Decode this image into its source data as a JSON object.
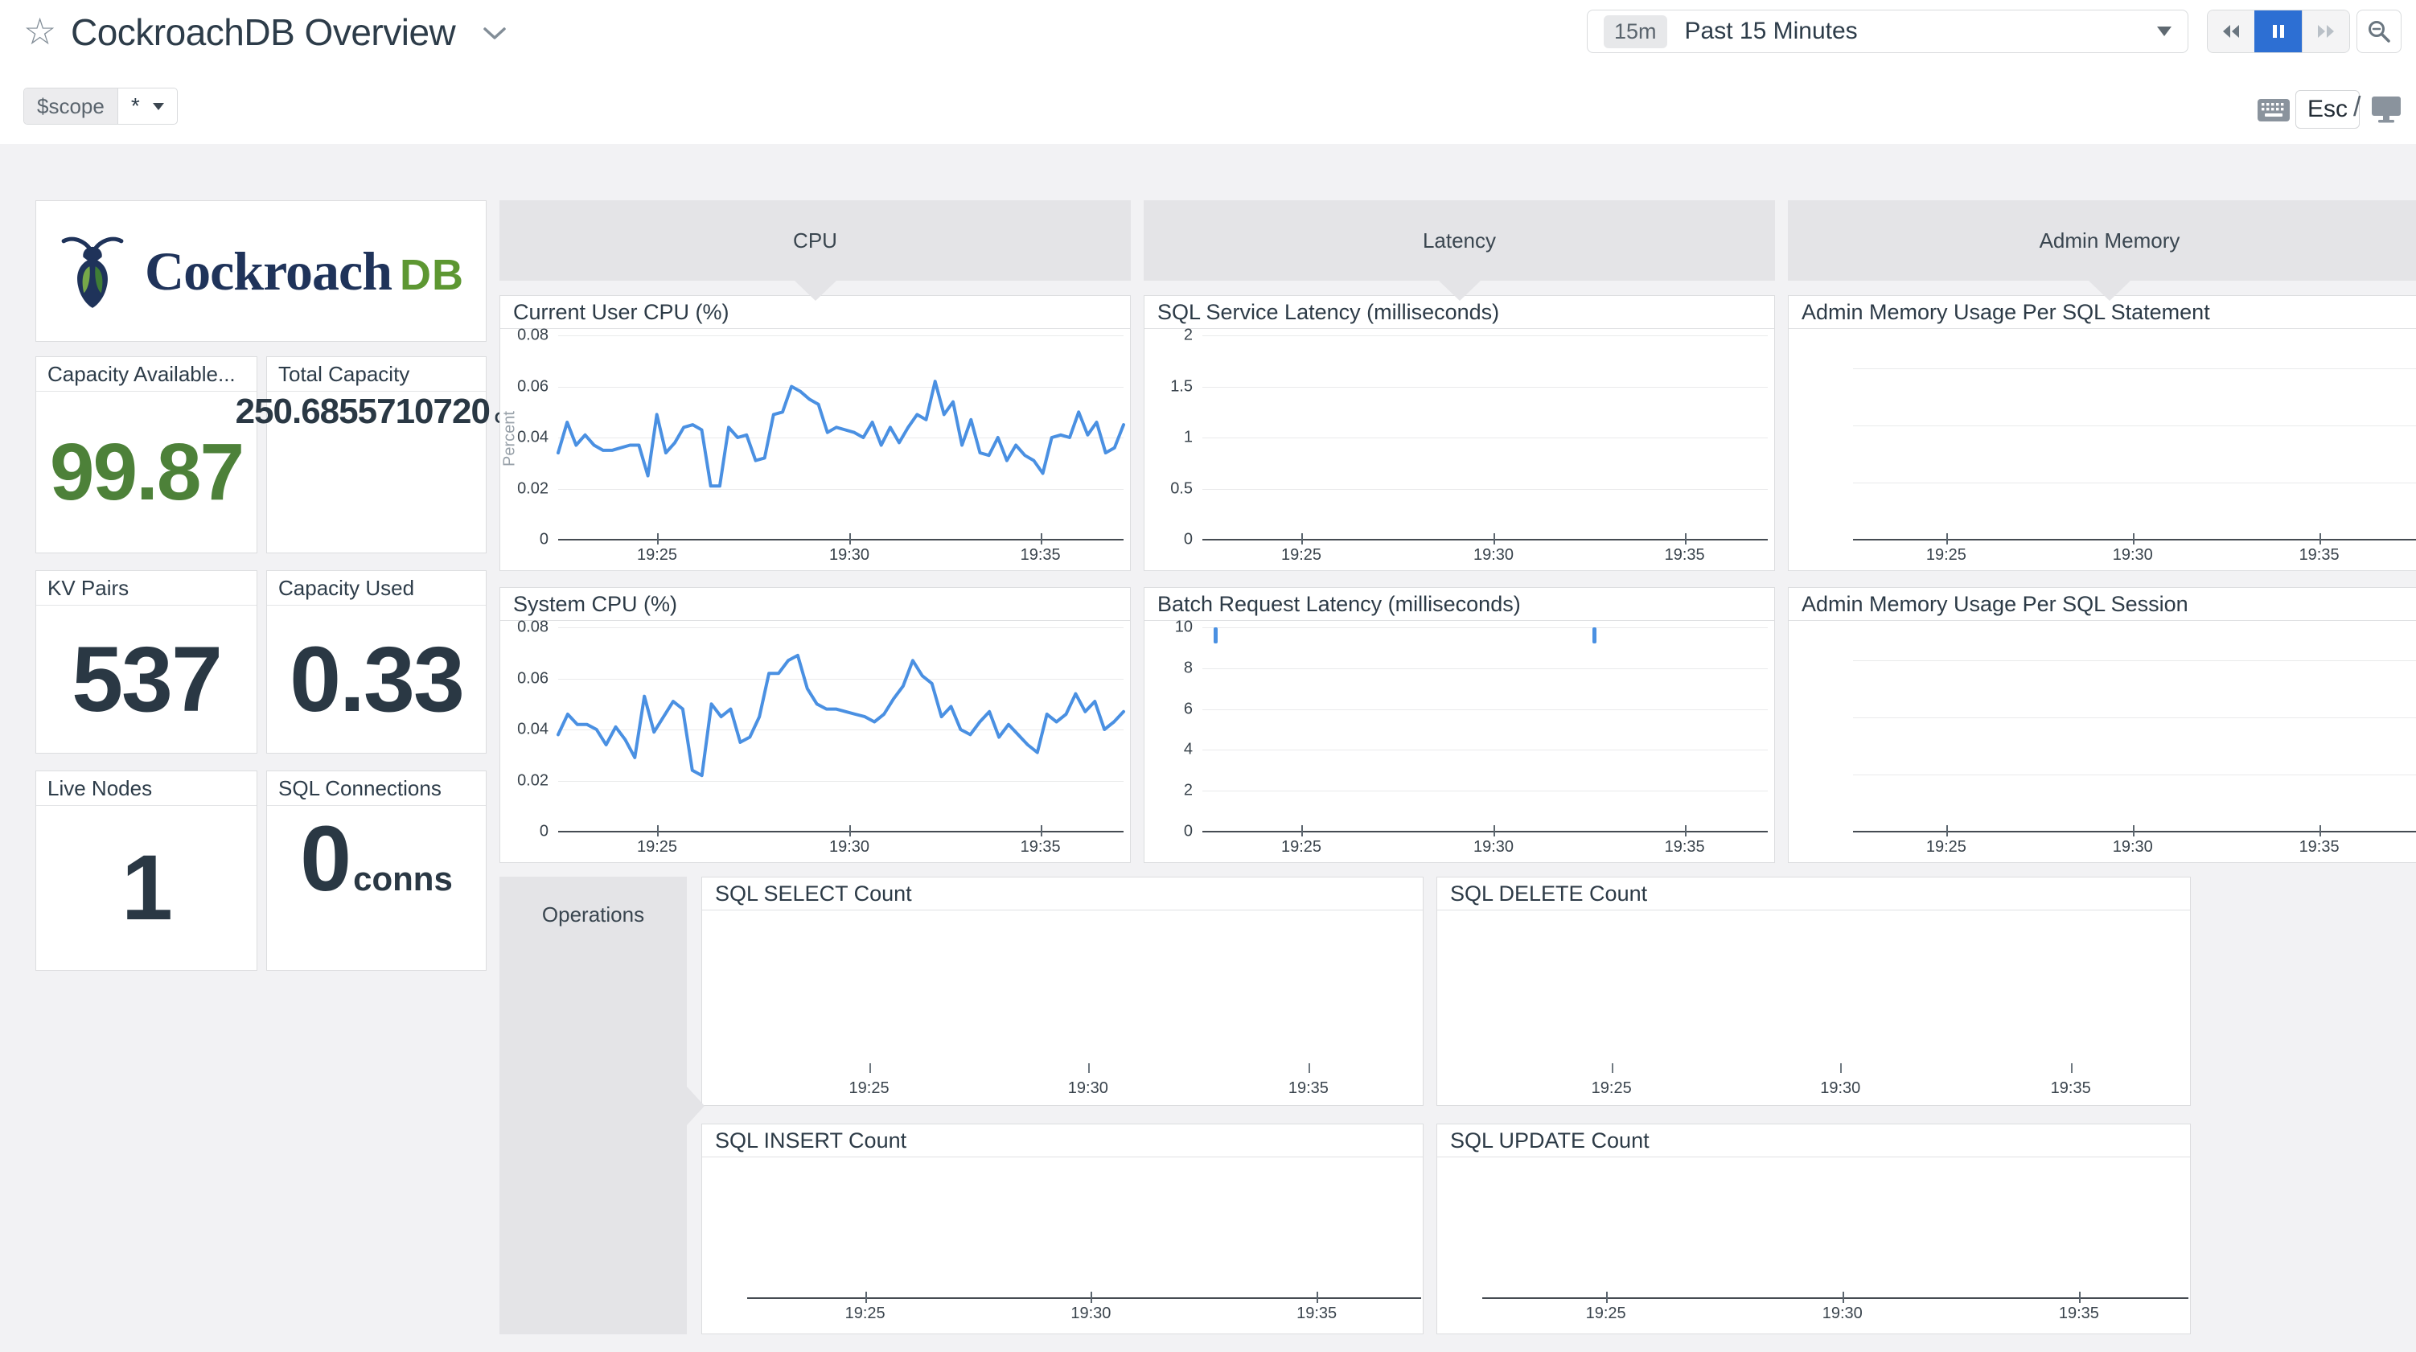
{
  "header": {
    "title": "CockroachDB Overview",
    "scope": {
      "key": "$scope",
      "value": "*"
    },
    "time_selector": {
      "badge": "15m",
      "label": "Past 15 Minutes"
    },
    "hints": {
      "esc": "Esc",
      "slash": "/"
    }
  },
  "logo": {
    "word": "Cockroach",
    "suffix": "DB"
  },
  "stat_cards": [
    {
      "title": "Capacity Available...",
      "value": "99.87",
      "unit": ""
    },
    {
      "title": "Total Capacity",
      "value": "250.6855710720",
      "unit": "GB"
    },
    {
      "title": "KV Pairs",
      "value": "537",
      "unit": ""
    },
    {
      "title": "Capacity Used",
      "value": "0.33",
      "unit": ""
    },
    {
      "title": "Live Nodes",
      "value": "1",
      "unit": ""
    },
    {
      "title": "SQL Connections",
      "value": "0",
      "unit": "conns"
    }
  ],
  "groups": [
    {
      "label": "CPU"
    },
    {
      "label": "Latency"
    },
    {
      "label": "Admin Memory"
    },
    {
      "label": "Operations"
    }
  ],
  "chart_data": [
    {
      "id": "current-user-cpu",
      "type": "line",
      "kind": "cpu",
      "title": "Current User CPU (%)",
      "ylabel": "Percent",
      "ylim": [
        0,
        0.08
      ],
      "yticks": [
        "0",
        "0.02",
        "0.04",
        "0.06",
        "0.08"
      ],
      "xticks": [
        {
          "label": "19:25",
          "f": 0.175
        },
        {
          "label": "19:30",
          "f": 0.515
        },
        {
          "label": "19:35",
          "f": 0.853
        }
      ],
      "line_color": "#4a90e2",
      "values": [
        0.034,
        0.046,
        0.037,
        0.041,
        0.037,
        0.035,
        0.035,
        0.036,
        0.037,
        0.037,
        0.025,
        0.049,
        0.034,
        0.038,
        0.044,
        0.045,
        0.043,
        0.021,
        0.021,
        0.044,
        0.04,
        0.041,
        0.031,
        0.032,
        0.049,
        0.05,
        0.06,
        0.058,
        0.055,
        0.053,
        0.042,
        0.044,
        0.043,
        0.042,
        0.04,
        0.046,
        0.037,
        0.044,
        0.038,
        0.044,
        0.049,
        0.047,
        0.062,
        0.049,
        0.054,
        0.037,
        0.047,
        0.034,
        0.033,
        0.04,
        0.031,
        0.037,
        0.033,
        0.031,
        0.026,
        0.04,
        0.041,
        0.04,
        0.05,
        0.041,
        0.046,
        0.034,
        0.036,
        0.045
      ]
    },
    {
      "id": "system-cpu",
      "type": "line",
      "kind": "cpu",
      "title": "System CPU (%)",
      "ylabel": null,
      "ylim": [
        0,
        0.08
      ],
      "yticks": [
        "0",
        "0.02",
        "0.04",
        "0.06",
        "0.08"
      ],
      "xticks": [
        {
          "label": "19:25",
          "f": 0.175
        },
        {
          "label": "19:30",
          "f": 0.515
        },
        {
          "label": "19:35",
          "f": 0.853
        }
      ],
      "line_color": "#4a90e2",
      "values": [
        0.038,
        0.046,
        0.042,
        0.042,
        0.04,
        0.034,
        0.041,
        0.036,
        0.029,
        0.053,
        0.039,
        0.045,
        0.051,
        0.048,
        0.024,
        0.022,
        0.05,
        0.045,
        0.048,
        0.035,
        0.037,
        0.045,
        0.062,
        0.062,
        0.067,
        0.069,
        0.056,
        0.05,
        0.048,
        0.048,
        0.047,
        0.046,
        0.045,
        0.043,
        0.046,
        0.052,
        0.057,
        0.067,
        0.061,
        0.058,
        0.045,
        0.049,
        0.04,
        0.038,
        0.043,
        0.047,
        0.037,
        0.042,
        0.038,
        0.034,
        0.031,
        0.046,
        0.043,
        0.046,
        0.054,
        0.047,
        0.051,
        0.04,
        0.043,
        0.047
      ]
    },
    {
      "id": "sql-service-latency",
      "type": "line",
      "kind": "cpu",
      "title": "SQL Service Latency (milliseconds)",
      "ylabel": null,
      "ylim": [
        0,
        2
      ],
      "yticks": [
        "0",
        "0.5",
        "1",
        "1.5",
        "2"
      ],
      "xticks": [
        {
          "label": "19:25",
          "f": 0.175
        },
        {
          "label": "19:30",
          "f": 0.515
        },
        {
          "label": "19:35",
          "f": 0.853
        }
      ],
      "line_color": "#4a90e2",
      "values": []
    },
    {
      "id": "batch-request-latency",
      "type": "line",
      "kind": "cpu",
      "title": "Batch Request Latency (milliseconds)",
      "ylabel": null,
      "ylim": [
        0,
        10
      ],
      "yticks": [
        "0",
        "2",
        "4",
        "6",
        "8",
        "10"
      ],
      "xticks": [
        {
          "label": "19:25",
          "f": 0.175
        },
        {
          "label": "19:30",
          "f": 0.515
        },
        {
          "label": "19:35",
          "f": 0.853
        }
      ],
      "line_color": "#4a90e2",
      "values": [],
      "marks": [
        {
          "f": 0.02,
          "v": 10
        },
        {
          "f": 0.69,
          "v": 10
        }
      ]
    },
    {
      "id": "admin-memory-statement",
      "type": "line",
      "kind": "admem",
      "title": "Admin Memory Usage Per SQL Statement",
      "ylabel": null,
      "ylim": [
        0,
        1
      ],
      "yticks": null,
      "gridlines": [
        0.28,
        0.56,
        0.84
      ],
      "xticks": [
        {
          "label": "19:25",
          "f": 0.14
        },
        {
          "label": "19:30",
          "f": 0.42
        },
        {
          "label": "19:35",
          "f": 0.7
        }
      ],
      "line_color": "#4a90e2",
      "values": []
    },
    {
      "id": "admin-memory-session",
      "type": "line",
      "kind": "admem",
      "title": "Admin Memory Usage Per SQL Session",
      "ylabel": null,
      "ylim": [
        0,
        1
      ],
      "yticks": null,
      "gridlines": [
        0.28,
        0.56,
        0.84
      ],
      "xticks": [
        {
          "label": "19:25",
          "f": 0.14
        },
        {
          "label": "19:30",
          "f": 0.42
        },
        {
          "label": "19:35",
          "f": 0.7
        }
      ],
      "line_color": "#4a90e2",
      "values": []
    },
    {
      "id": "sql-select-count",
      "type": "line",
      "kind": "ops-ticks",
      "title": "SQL SELECT Count",
      "ylabel": null,
      "ylim": [
        0,
        1
      ],
      "yticks": null,
      "xticks": [
        {
          "label": "19:25",
          "f": 0.228
        },
        {
          "label": "19:30",
          "f": 0.536
        },
        {
          "label": "19:35",
          "f": 0.846
        }
      ],
      "line_color": "#4a90e2",
      "values": []
    },
    {
      "id": "sql-delete-count",
      "type": "line",
      "kind": "ops-ticks",
      "title": "SQL DELETE Count",
      "ylabel": null,
      "ylim": [
        0,
        1
      ],
      "yticks": null,
      "xticks": [
        {
          "label": "19:25",
          "f": 0.228
        },
        {
          "label": "19:30",
          "f": 0.536
        },
        {
          "label": "19:35",
          "f": 0.846
        }
      ],
      "line_color": "#4a90e2",
      "values": []
    },
    {
      "id": "sql-insert-count",
      "type": "line",
      "kind": "ops-baseline",
      "title": "SQL INSERT Count",
      "ylabel": null,
      "ylim": [
        0,
        1
      ],
      "yticks": null,
      "xticks": [
        {
          "label": "19:25",
          "f": 0.175
        },
        {
          "label": "19:30",
          "f": 0.51
        },
        {
          "label": "19:35",
          "f": 0.845
        }
      ],
      "line_color": "#4a90e2",
      "values": []
    },
    {
      "id": "sql-update-count",
      "type": "line",
      "kind": "ops-baseline",
      "title": "SQL UPDATE Count",
      "ylabel": null,
      "ylim": [
        0,
        1
      ],
      "yticks": null,
      "xticks": [
        {
          "label": "19:25",
          "f": 0.175
        },
        {
          "label": "19:30",
          "f": 0.51
        },
        {
          "label": "19:35",
          "f": 0.845
        }
      ],
      "line_color": "#4a90e2",
      "values": []
    }
  ]
}
